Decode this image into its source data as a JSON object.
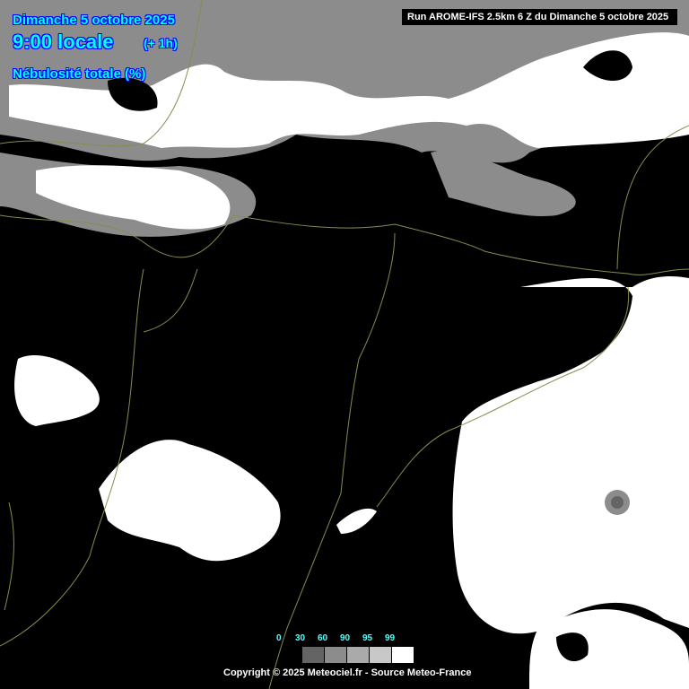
{
  "header": {
    "date": "Dimanche 5 octobre 2025",
    "time": "9:00 locale",
    "offset": "(+ 1h)",
    "parameter": "Nébulosité totale (%)",
    "run": "Run AROME-IFS 2.5km 6 Z du Dimanche 5 octobre 2025"
  },
  "legend": {
    "labels": [
      "0",
      "30",
      "60",
      "90",
      "95",
      "99"
    ],
    "colors": [
      "#646464",
      "#8c8c8c",
      "#aaaaaa",
      "#c8c8c8",
      "#ffffff"
    ]
  },
  "footer": {
    "copyright": "Copyright © 2025 Meteociel.fr - Source Meteo-France"
  },
  "colors": {
    "background": "#000000",
    "cloud": "#ffffff",
    "border_line": "#8a8a50",
    "header_text": "#00ffff"
  }
}
